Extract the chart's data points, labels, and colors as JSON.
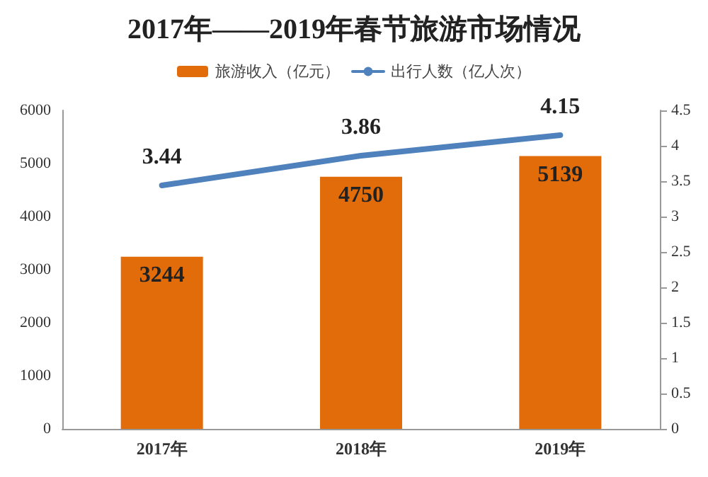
{
  "chart_data": {
    "type": "bar",
    "title": "2017年——2019年春节旅游市场情况",
    "categories": [
      "2017年",
      "2018年",
      "2019年"
    ],
    "series": [
      {
        "name": "旅游收入（亿元）",
        "color": "#e36c0a",
        "values": [
          3244,
          4750,
          5139
        ]
      },
      {
        "name": "出行人数（亿人次）",
        "type": "line",
        "axis": "y2",
        "color": "#4f81bd",
        "values": [
          3.44,
          3.86,
          4.15
        ]
      }
    ],
    "ylim": [
      0,
      6000
    ],
    "yticks": [
      0,
      1000,
      2000,
      3000,
      4000,
      5000,
      6000
    ],
    "y2lim": [
      0,
      4.5
    ],
    "y2ticks": [
      0,
      0.5,
      1,
      1.5,
      2,
      2.5,
      3,
      3.5,
      4,
      4.5
    ],
    "data_labels": true,
    "legend": "top",
    "grid": false,
    "marker": "none",
    "line_style": "solid"
  }
}
